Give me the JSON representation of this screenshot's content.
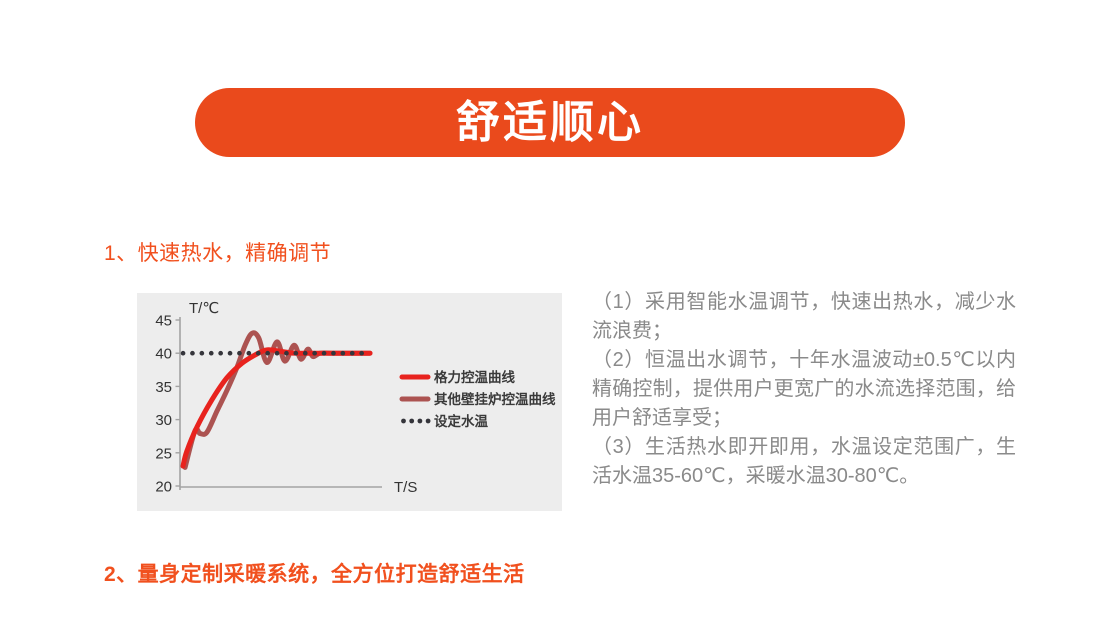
{
  "colors": {
    "banner_bg": "#EA4A1C",
    "banner_text": "#FFFFFF",
    "heading_orange": "#F1501E",
    "body_text_gray": "#8A8A8A",
    "chart_bg": "#EDEDED",
    "axis_gray": "#A3A3A3",
    "tick_label": "#333333",
    "legend_label": "#3A3A3A"
  },
  "banner": {
    "title": "舒适顺心"
  },
  "section1": {
    "title": "1、快速热水，精确调节"
  },
  "section2": {
    "title": "2、量身定制采暖系统，全方位打造舒适生活"
  },
  "description": {
    "paragraphs": [
      "（1）采用智能水温调节，快速出热水，减少水流浪费；",
      "（2）恒温出水调节，十年水温波动±0.5℃以内精确控制，提供用户更宽广的水流选择范围，给用户舒适享受；",
      "（3）生活热水即开即用，水温设定范围广，生活水温35-60℃，采暖水温30-80℃。"
    ]
  },
  "chart_data": {
    "type": "line",
    "title": "",
    "xlabel": "T/S",
    "ylabel": "T/℃",
    "ylim": [
      20,
      45
    ],
    "yticks": [
      45,
      40,
      35,
      30,
      25,
      20
    ],
    "grid": false,
    "legend_position": "right-inside",
    "setpoint_temperature": 40,
    "series": [
      {
        "name": "格力控温曲线",
        "color": "#E8231E",
        "style": "solid",
        "points": [
          [
            0,
            23
          ],
          [
            2,
            25.2
          ],
          [
            7.5,
            28.9
          ],
          [
            15.5,
            33
          ],
          [
            23.5,
            36.3
          ],
          [
            31.6,
            38.5
          ],
          [
            39.6,
            39.9
          ],
          [
            45,
            40.5
          ],
          [
            52,
            40.3
          ],
          [
            58,
            40.05
          ],
          [
            63,
            40
          ],
          [
            100,
            40
          ]
        ]
      },
      {
        "name": "其他壁挂炉控温曲线",
        "color": "#AC5351",
        "style": "solid",
        "points": [
          [
            1.1,
            22.8
          ],
          [
            6.4,
            28.3
          ],
          [
            9.1,
            27.9
          ],
          [
            12.8,
            28.1
          ],
          [
            18.2,
            31.3
          ],
          [
            23.5,
            34.4
          ],
          [
            28.9,
            37.9
          ],
          [
            33.2,
            41.2
          ],
          [
            36.9,
            43.0
          ],
          [
            40.5,
            42.3
          ],
          [
            44.9,
            38.6
          ],
          [
            50.3,
            41.7
          ],
          [
            54.5,
            38.8
          ],
          [
            59.4,
            41.2
          ],
          [
            63.1,
            39.1
          ],
          [
            66.8,
            40.6
          ],
          [
            69.5,
            39.5
          ],
          [
            73.3,
            40
          ],
          [
            80,
            40
          ],
          [
            100,
            40
          ]
        ]
      },
      {
        "name": "设定水温",
        "color": "#35353B",
        "style": "dotted",
        "value": 40
      }
    ]
  }
}
